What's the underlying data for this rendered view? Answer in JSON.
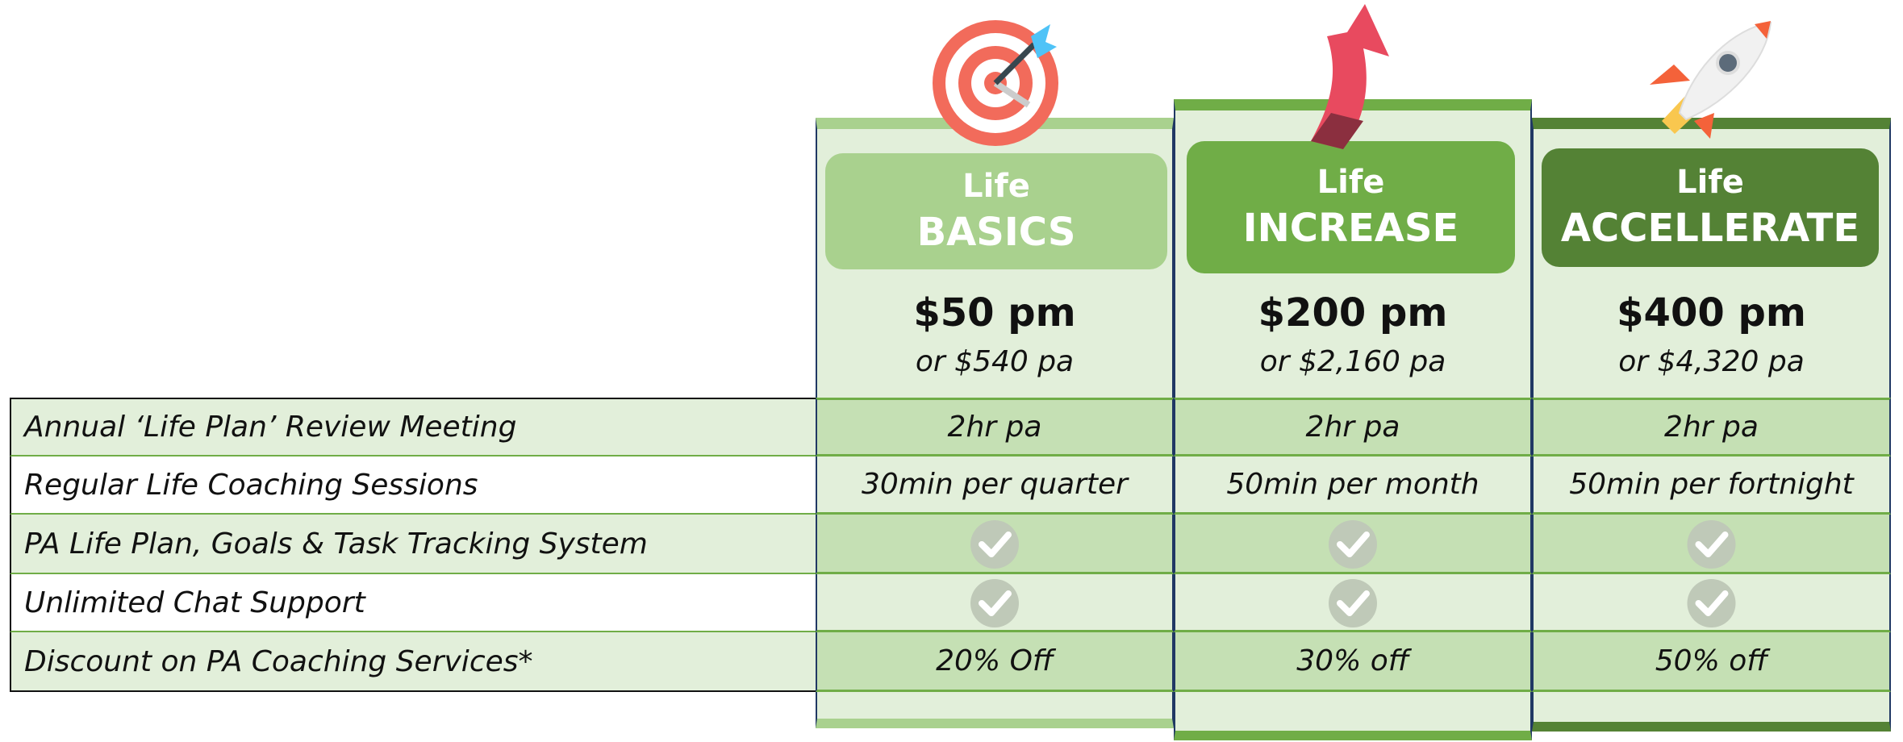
{
  "plans": [
    {
      "line1": "Life",
      "line2": "BASICS",
      "price": "$50 pm",
      "annual": "or $540 pa"
    },
    {
      "line1": "Life",
      "line2": "INCREASE",
      "price": "$200 pm",
      "annual": "or $2,160 pa"
    },
    {
      "line1": "Life",
      "line2": "ACCELLERATE",
      "price": "$400 pm",
      "annual": "or $4,320 pa"
    }
  ],
  "rows": [
    {
      "feature": "Annual ‘Life Plan’ Review Meeting",
      "values": [
        "2hr pa",
        "2hr pa",
        "2hr pa"
      ]
    },
    {
      "feature": "Regular Life Coaching Sessions",
      "values": [
        "30min per quarter",
        "50min per month",
        "50min per fortnight"
      ]
    },
    {
      "feature": "PA Life Plan, Goals & Task Tracking System",
      "included": [
        true,
        true,
        true
      ]
    },
    {
      "feature": "Unlimited Chat Support",
      "included": [
        true,
        true,
        true
      ]
    },
    {
      "feature": "Discount on PA Coaching Services*",
      "values": [
        "20% Off",
        "30% off",
        "50% off"
      ]
    }
  ]
}
